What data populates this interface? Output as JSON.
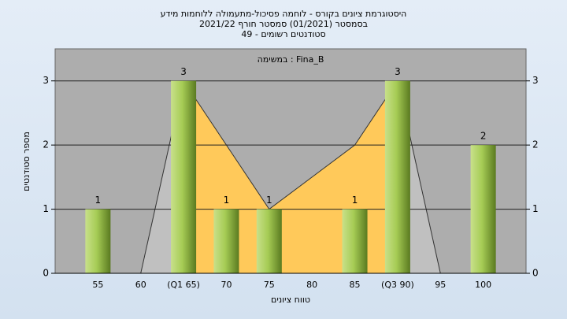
{
  "chart_data": {
    "type": "bar",
    "title": [
      "היסטוגרמת ציונים בקורס - לוחמה פסיכול-מתעמולה ללוחמות מידע",
      "בסמסטר  (01/2021)  סמסטר חורף  2021/22",
      "49 - סטודנטים רשומים"
    ],
    "subtitle": "במשימה : Fina_B",
    "y_label": "מספר סטודנטים",
    "x_label": "טווח ציונים",
    "categories": [
      "55",
      "60",
      "(Q1 65)",
      "70",
      "75",
      "80",
      "85",
      "(Q3 90)",
      "95",
      "100"
    ],
    "values": [
      1,
      0,
      3,
      1,
      1,
      0,
      1,
      3,
      0,
      2
    ],
    "color": "#9cc24a",
    "areas": [
      {
        "color": "#c0c0c0",
        "values": [
          null,
          0,
          3,
          null,
          null,
          null,
          null,
          3,
          0,
          null
        ]
      },
      {
        "color": "#ffc95a",
        "values": [
          null,
          null,
          3,
          2,
          1,
          1.5,
          2,
          3,
          null,
          null
        ]
      }
    ],
    "ylim": [
      0,
      3.5
    ],
    "yticks": [
      0,
      1,
      2,
      3
    ],
    "grid": true
  }
}
